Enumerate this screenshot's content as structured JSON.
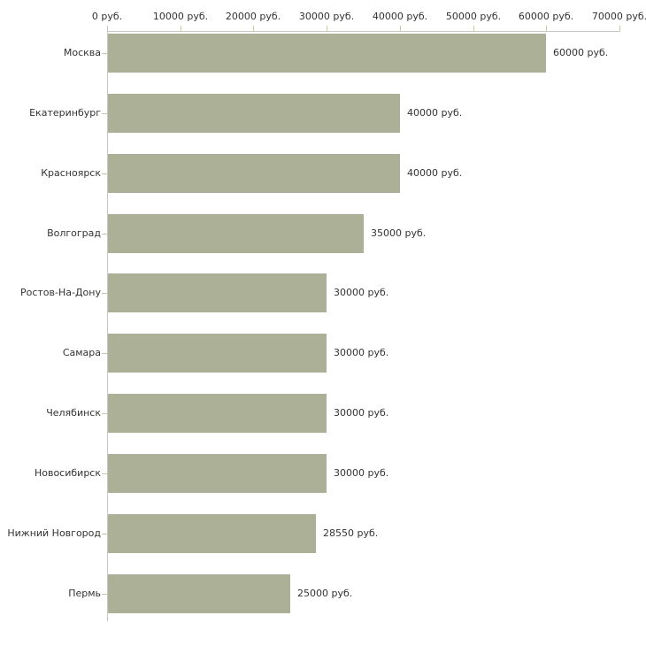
{
  "chart": {
    "background": "#ffffff",
    "bar_color": "#abb096",
    "axis_line_color": "#c6c6c6",
    "x_tick_mark_color": "#cbcba4",
    "category_tick_mark_color": "#c4c4ab",
    "text_color": "#333333"
  },
  "chart_data": {
    "type": "bar",
    "orientation": "horizontal",
    "title": "",
    "xlabel": "",
    "ylabel": "",
    "grid": false,
    "legend_position": "none",
    "xlim": [
      0,
      70000
    ],
    "x_tick_values": [
      0,
      10000,
      20000,
      30000,
      40000,
      50000,
      60000,
      70000
    ],
    "x_tick_labels": [
      "0 руб.",
      "10000 руб.",
      "20000 руб.",
      "30000 руб.",
      "40000 руб.",
      "50000 руб.",
      "60000 руб.",
      "70000 руб."
    ],
    "categories": [
      "Москва",
      "Екатеринбург",
      "Красноярск",
      "Волгоград",
      "Ростов-На-Дону",
      "Самара",
      "Челябинск",
      "Новосибирск",
      "Нижний Новгород",
      "Пермь"
    ],
    "values": [
      60000,
      40000,
      40000,
      35000,
      30000,
      30000,
      30000,
      30000,
      28550,
      25000
    ],
    "value_labels": [
      "60000 руб.",
      "40000 руб.",
      "40000 руб.",
      "35000 руб.",
      "30000 руб.",
      "30000 руб.",
      "30000 руб.",
      "30000 руб.",
      "28550 руб.",
      "25000 руб."
    ]
  }
}
